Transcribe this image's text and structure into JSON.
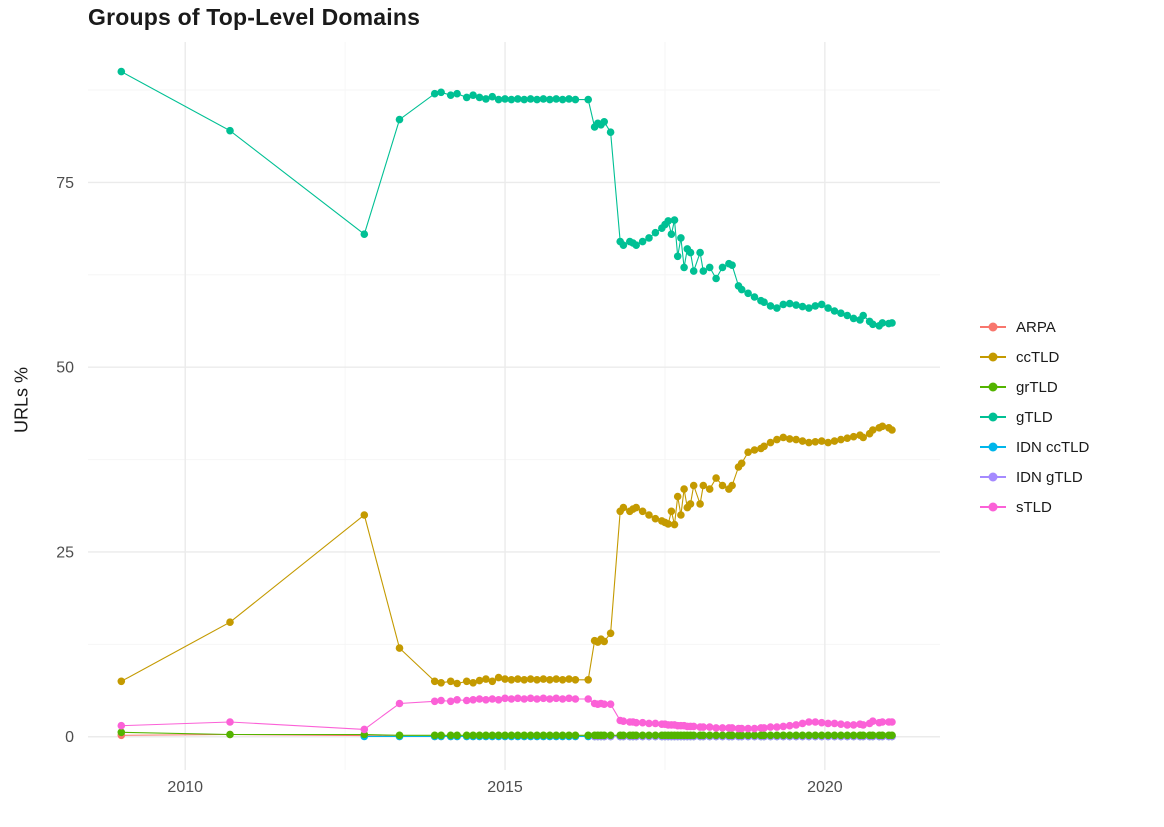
{
  "colors": {
    "background": "#FFFFFF",
    "grid_major": "#EBEBEB",
    "grid_minor": "#F6F6F6",
    "tick_text": "#4D4D4D",
    "title_text": "#1A1A1A"
  },
  "chart_data": {
    "type": "line",
    "title": "Groups of Top-Level Domains",
    "xlabel": "",
    "ylabel": "URLs %",
    "xlim": [
      2008.48,
      2021.8
    ],
    "ylim": [
      -4.5,
      94
    ],
    "x_ticks": [
      2010,
      2015,
      2020
    ],
    "x_minor": [
      2012.5,
      2017.5
    ],
    "y_ticks": [
      0,
      25,
      50,
      75
    ],
    "y_minor": [
      12.5,
      37.5,
      62.5,
      87.5
    ],
    "grid": true,
    "legend_position": "right",
    "legend_order": [
      "ARPA",
      "ccTLD",
      "grTLD",
      "gTLD",
      "IDN ccTLD",
      "IDN gTLD",
      "sTLD"
    ],
    "x": [
      2009.0,
      2010.7,
      2012.8,
      2013.35,
      2013.9,
      2014.0,
      2014.15,
      2014.25,
      2014.4,
      2014.5,
      2014.6,
      2014.7,
      2014.8,
      2014.9,
      2015.0,
      2015.1,
      2015.2,
      2015.3,
      2015.4,
      2015.5,
      2015.6,
      2015.7,
      2015.8,
      2015.9,
      2016.0,
      2016.1,
      2016.3,
      2016.4,
      2016.45,
      2016.5,
      2016.55,
      2016.65,
      2016.8,
      2016.85,
      2016.95,
      2017.0,
      2017.05,
      2017.15,
      2017.25,
      2017.35,
      2017.45,
      2017.5,
      2017.55,
      2017.6,
      2017.65,
      2017.7,
      2017.75,
      2017.8,
      2017.85,
      2017.9,
      2017.95,
      2018.05,
      2018.1,
      2018.2,
      2018.3,
      2018.4,
      2018.5,
      2018.55,
      2018.65,
      2018.7,
      2018.8,
      2018.9,
      2019.0,
      2019.05,
      2019.15,
      2019.25,
      2019.35,
      2019.45,
      2019.55,
      2019.65,
      2019.75,
      2019.85,
      2019.95,
      2020.05,
      2020.15,
      2020.25,
      2020.35,
      2020.45,
      2020.55,
      2020.6,
      2020.7,
      2020.75,
      2020.85,
      2020.9,
      2021.0,
      2021.05
    ],
    "series": [
      {
        "name": "ARPA",
        "color": "#F8766D",
        "values": [
          0.2,
          0.3,
          0.15,
          0.05,
          0.05,
          0.05,
          0.05,
          0.05,
          0.05,
          0.05,
          0.05,
          0.05,
          0.05,
          0.05,
          0.05,
          0.05,
          0.05,
          0.05,
          0.05,
          0.05,
          0.05,
          0.05,
          0.05,
          0.05,
          0.05,
          0.05,
          0.05,
          0.05,
          0.05,
          0.05,
          0.05,
          0.05,
          0.05,
          0.05,
          0.05,
          0.05,
          0.05,
          0.05,
          0.05,
          0.05,
          0.05,
          0.05,
          0.05,
          0.05,
          0.05,
          0.05,
          0.05,
          0.05,
          0.05,
          0.05,
          0.05,
          0.05,
          0.05,
          0.05,
          0.05,
          0.05,
          0.05,
          0.05,
          0.05,
          0.05,
          0.05,
          0.05,
          0.05,
          0.05,
          0.05,
          0.05,
          0.05,
          0.05,
          0.05,
          0.05,
          0.05,
          0.05,
          0.05,
          0.05,
          0.05,
          0.05,
          0.05,
          0.05,
          0.05,
          0.05,
          0.05,
          0.05,
          0.05,
          0.05,
          0.05,
          0.05
        ]
      },
      {
        "name": "IDN ccTLD",
        "color": "#00B6EB",
        "values": [
          null,
          null,
          0.05,
          0.05,
          0.05,
          0.05,
          0.05,
          0.05,
          0.05,
          0.05,
          0.05,
          0.05,
          0.05,
          0.05,
          0.05,
          0.05,
          0.05,
          0.05,
          0.05,
          0.05,
          0.05,
          0.05,
          0.05,
          0.05,
          0.05,
          0.05,
          0.05,
          0.05,
          0.05,
          0.05,
          0.05,
          0.05,
          0.05,
          0.05,
          0.05,
          0.05,
          0.05,
          0.05,
          0.05,
          0.05,
          0.05,
          0.05,
          0.05,
          0.05,
          0.05,
          0.05,
          0.05,
          0.05,
          0.05,
          0.05,
          0.05,
          0.05,
          0.05,
          0.05,
          0.05,
          0.05,
          0.05,
          0.05,
          0.05,
          0.05,
          0.05,
          0.05,
          0.05,
          0.05,
          0.05,
          0.05,
          0.05,
          0.05,
          0.05,
          0.05,
          0.05,
          0.05,
          0.05,
          0.05,
          0.05,
          0.05,
          0.05,
          0.05,
          0.05,
          0.05,
          0.05,
          0.05,
          0.05,
          0.05,
          0.05,
          0.05
        ]
      },
      {
        "name": "IDN gTLD",
        "color": "#A58AFF",
        "values": [
          null,
          null,
          null,
          null,
          null,
          null,
          null,
          null,
          null,
          null,
          null,
          null,
          null,
          null,
          null,
          null,
          null,
          null,
          null,
          null,
          null,
          null,
          null,
          null,
          null,
          null,
          null,
          0.05,
          0.05,
          0.05,
          0.05,
          0.05,
          0.05,
          0.05,
          0.05,
          0.05,
          0.05,
          0.05,
          0.05,
          0.05,
          0.05,
          0.05,
          0.05,
          0.05,
          0.05,
          0.05,
          0.05,
          0.05,
          0.05,
          0.05,
          0.05,
          0.05,
          0.05,
          0.05,
          0.05,
          0.05,
          0.05,
          0.05,
          0.05,
          0.05,
          0.05,
          0.05,
          0.05,
          0.05,
          0.05,
          0.05,
          0.05,
          0.05,
          0.05,
          0.05,
          0.05,
          0.05,
          0.05,
          0.05,
          0.05,
          0.05,
          0.05,
          0.05,
          0.05,
          0.05,
          0.05,
          0.05,
          0.05,
          0.05,
          0.05,
          0.05
        ]
      },
      {
        "name": "grTLD",
        "color": "#53B400",
        "values": [
          0.6,
          0.3,
          0.3,
          0.2,
          0.2,
          0.2,
          0.2,
          0.2,
          0.2,
          0.2,
          0.2,
          0.2,
          0.2,
          0.2,
          0.2,
          0.2,
          0.2,
          0.2,
          0.2,
          0.2,
          0.2,
          0.2,
          0.2,
          0.2,
          0.2,
          0.2,
          0.2,
          0.2,
          0.2,
          0.2,
          0.2,
          0.2,
          0.2,
          0.2,
          0.2,
          0.2,
          0.2,
          0.2,
          0.2,
          0.2,
          0.2,
          0.2,
          0.2,
          0.2,
          0.2,
          0.2,
          0.2,
          0.2,
          0.2,
          0.2,
          0.2,
          0.2,
          0.2,
          0.2,
          0.2,
          0.2,
          0.2,
          0.2,
          0.2,
          0.2,
          0.2,
          0.2,
          0.2,
          0.2,
          0.2,
          0.2,
          0.2,
          0.2,
          0.2,
          0.2,
          0.2,
          0.2,
          0.2,
          0.2,
          0.2,
          0.2,
          0.2,
          0.2,
          0.2,
          0.2,
          0.2,
          0.2,
          0.2,
          0.2,
          0.2,
          0.2
        ]
      },
      {
        "name": "ccTLD",
        "color": "#C49A00",
        "values": [
          7.5,
          15.5,
          30,
          12,
          7.5,
          7.3,
          7.5,
          7.2,
          7.5,
          7.3,
          7.6,
          7.8,
          7.5,
          8,
          7.8,
          7.7,
          7.8,
          7.7,
          7.8,
          7.7,
          7.8,
          7.7,
          7.8,
          7.7,
          7.8,
          7.7,
          7.7,
          13,
          12.8,
          13.2,
          12.9,
          14,
          30.5,
          31,
          30.5,
          30.8,
          31,
          30.5,
          30,
          29.5,
          29.2,
          29,
          28.8,
          30.5,
          28.7,
          32.5,
          30,
          33.5,
          31,
          31.5,
          34,
          31.5,
          34,
          33.5,
          35,
          34,
          33.5,
          34,
          36.5,
          37,
          38.5,
          38.8,
          39,
          39.3,
          39.8,
          40.2,
          40.5,
          40.3,
          40.2,
          40,
          39.8,
          39.9,
          40,
          39.8,
          40,
          40.2,
          40.4,
          40.6,
          40.8,
          40.5,
          41,
          41.5,
          41.8,
          42,
          41.8,
          41.5
        ]
      },
      {
        "name": "gTLD",
        "color": "#00C094",
        "values": [
          90,
          82,
          68,
          83.5,
          87,
          87.2,
          86.8,
          87,
          86.5,
          86.8,
          86.5,
          86.3,
          86.6,
          86.2,
          86.3,
          86.2,
          86.3,
          86.2,
          86.3,
          86.2,
          86.3,
          86.2,
          86.3,
          86.2,
          86.3,
          86.2,
          86.2,
          82.5,
          83,
          82.8,
          83.2,
          81.8,
          67,
          66.5,
          67,
          66.8,
          66.5,
          67,
          67.5,
          68.2,
          68.8,
          69.3,
          69.8,
          68,
          69.9,
          65,
          67.5,
          63.5,
          66,
          65.5,
          63,
          65.5,
          63,
          63.5,
          62,
          63.5,
          64,
          63.8,
          61,
          60.5,
          60,
          59.5,
          59,
          58.8,
          58.3,
          58,
          58.5,
          58.6,
          58.4,
          58.2,
          58,
          58.3,
          58.5,
          58,
          57.6,
          57.3,
          57,
          56.6,
          56.4,
          57,
          56.2,
          55.8,
          55.6,
          56,
          55.9,
          56
        ]
      },
      {
        "name": "sTLD",
        "color": "#FB61D7",
        "values": [
          1.5,
          2,
          1,
          4.5,
          4.8,
          4.9,
          4.8,
          5,
          4.9,
          5,
          5.1,
          5,
          5.1,
          5,
          5.2,
          5.1,
          5.2,
          5.1,
          5.2,
          5.1,
          5.2,
          5.1,
          5.2,
          5.1,
          5.2,
          5.1,
          5.1,
          4.5,
          4.4,
          4.5,
          4.4,
          4.4,
          2.2,
          2.1,
          2,
          2,
          1.9,
          1.9,
          1.8,
          1.8,
          1.7,
          1.7,
          1.6,
          1.6,
          1.6,
          1.5,
          1.5,
          1.5,
          1.4,
          1.4,
          1.4,
          1.3,
          1.3,
          1.3,
          1.2,
          1.2,
          1.2,
          1.2,
          1.1,
          1.1,
          1.1,
          1.1,
          1.2,
          1.2,
          1.3,
          1.3,
          1.4,
          1.5,
          1.6,
          1.8,
          2,
          2,
          1.9,
          1.8,
          1.8,
          1.7,
          1.6,
          1.6,
          1.7,
          1.6,
          1.8,
          2.1,
          1.9,
          2,
          2,
          2
        ]
      }
    ]
  }
}
